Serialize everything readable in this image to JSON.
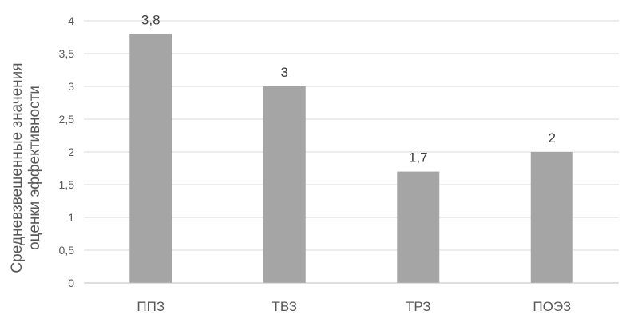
{
  "chart_data": {
    "type": "bar",
    "categories": [
      "ППЗ",
      "ТВЗ",
      "ТРЗ",
      "ПОЭЗ"
    ],
    "values": [
      3.8,
      3,
      1.7,
      2
    ],
    "data_labels": [
      "3,8",
      "3",
      "1,7",
      "2"
    ],
    "title": "",
    "xlabel": "",
    "ylabel_lines": [
      "Средневзвешенные значения",
      "оценки эффективности"
    ],
    "ylim": [
      0,
      4
    ],
    "yticks": [
      0,
      0.5,
      1,
      1.5,
      2,
      2.5,
      3,
      3.5,
      4
    ],
    "ytick_labels": [
      "0",
      "0,5",
      "1",
      "1,5",
      "2",
      "2,5",
      "3",
      "3,5",
      "4"
    ],
    "grid": true,
    "legend": "none",
    "bar_color": "#a5a5a5"
  }
}
